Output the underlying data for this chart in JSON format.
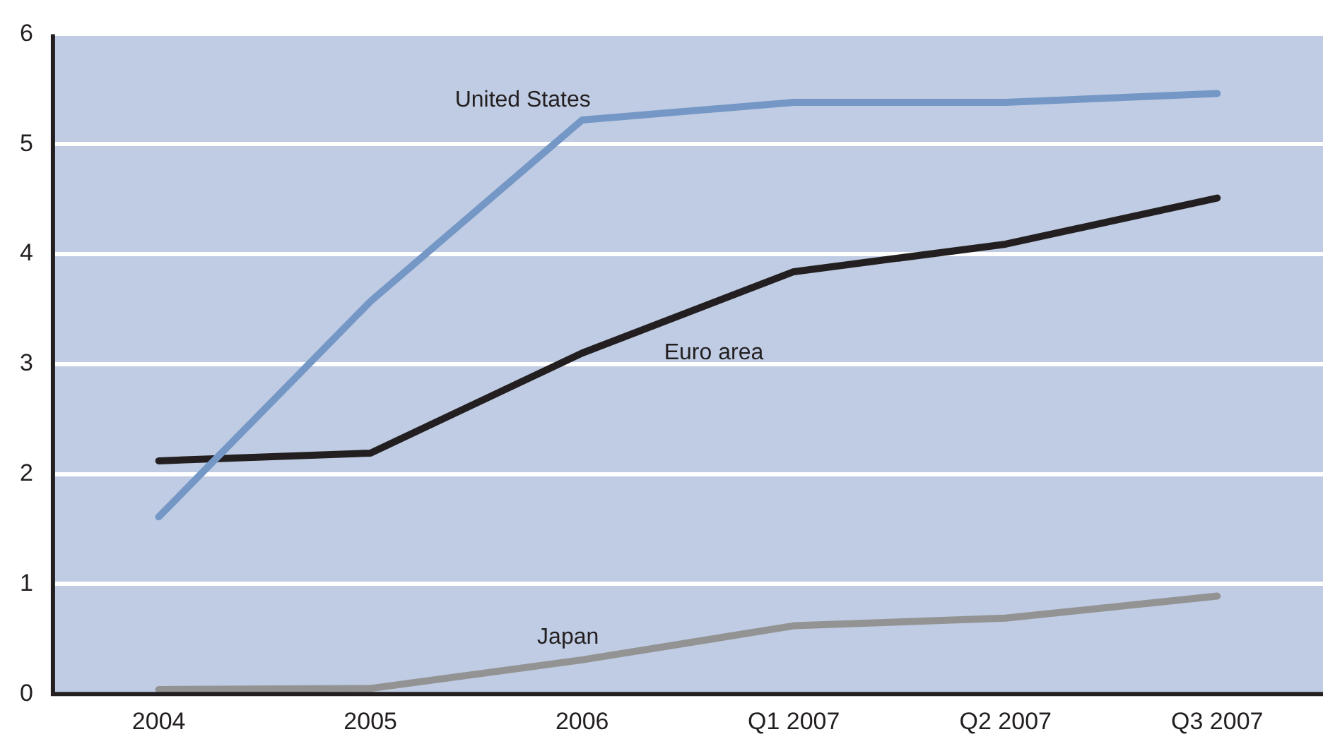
{
  "chart_data": {
    "type": "line",
    "categories": [
      "2004",
      "2005",
      "2006",
      "Q1 2007",
      "Q2 2007",
      "Q3 2007"
    ],
    "series": [
      {
        "name": "United States",
        "color": "#7597c6",
        "values": [
          1.61,
          3.57,
          5.22,
          5.38,
          5.38,
          5.46
        ]
      },
      {
        "name": "Euro area",
        "color": "#231f20",
        "values": [
          2.12,
          2.19,
          3.1,
          3.84,
          4.09,
          4.51
        ]
      },
      {
        "name": "Japan",
        "color": "#939393",
        "values": [
          0.04,
          0.05,
          0.31,
          0.62,
          0.69,
          0.89
        ]
      }
    ],
    "ylim": [
      0,
      6
    ],
    "yticks": [
      0,
      1,
      2,
      3,
      4,
      5,
      6
    ],
    "grid": "y",
    "legend": false,
    "marker": "none",
    "line_style": "solid"
  }
}
